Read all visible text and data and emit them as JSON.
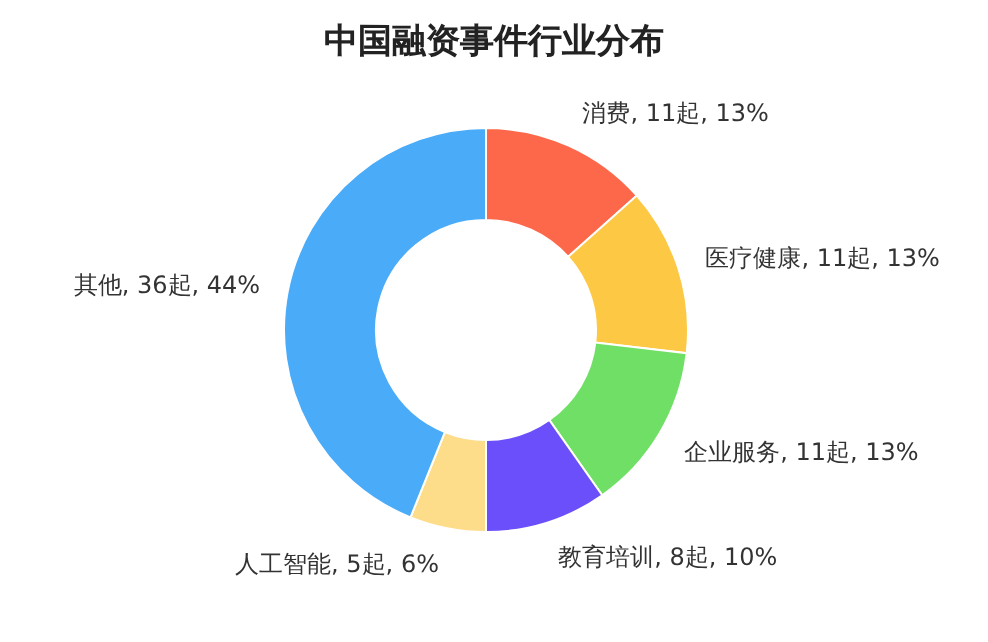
{
  "chart_data": {
    "type": "donut",
    "title": "中国融资事件行业分布",
    "categories": [
      "消费, 11起, 13%",
      "医疗健康, 11起, 13%",
      "企业服务, 11起, 13%",
      "教育培训, 8起, 10%",
      "人工智能, 5起, 6%",
      "其他, 36起, 44%"
    ],
    "values": [
      11,
      11,
      11,
      8,
      5,
      36
    ],
    "colors": [
      "#fd684b",
      "#fdc844",
      "#6fe065",
      "#6a4ffa",
      "#fddc8a",
      "#4aabf8"
    ],
    "legend": false
  }
}
